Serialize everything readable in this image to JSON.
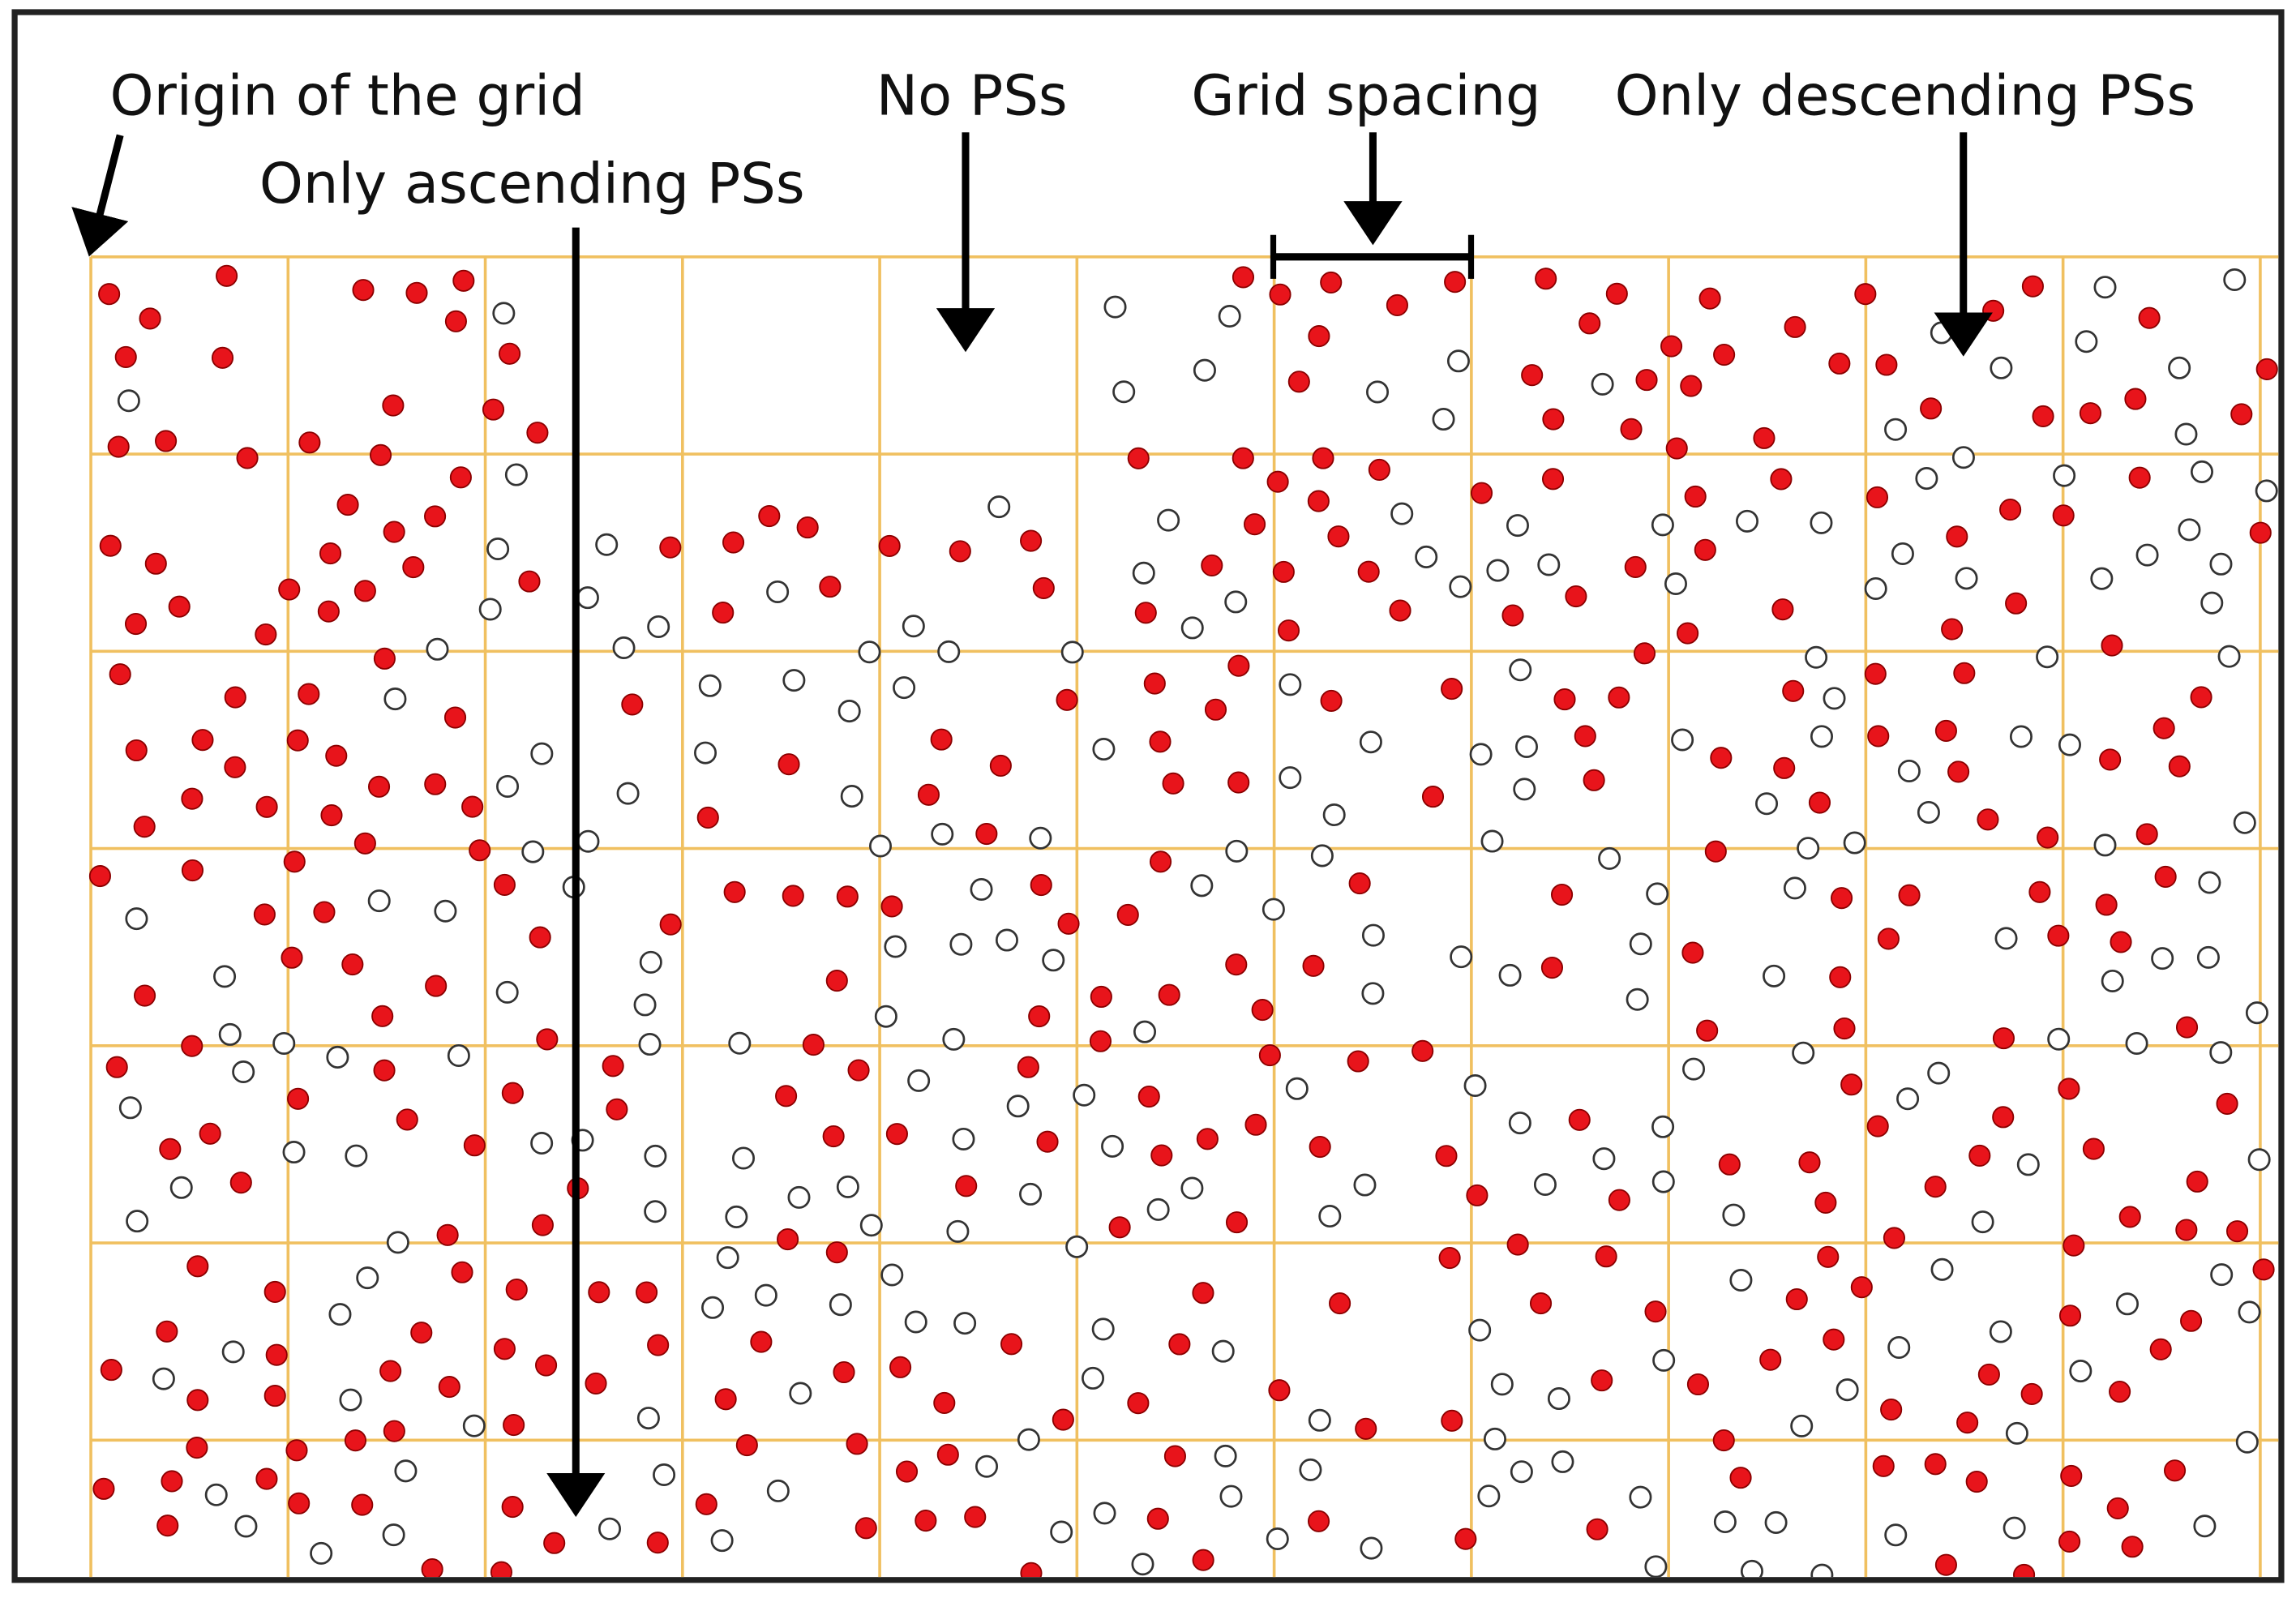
{
  "labels": {
    "origin": "Origin of the grid",
    "ascending": "Only ascending PSs",
    "no_ps": "No PSs",
    "grid_spacing": "Grid spacing",
    "descending": "Only descending PSs"
  }
}
